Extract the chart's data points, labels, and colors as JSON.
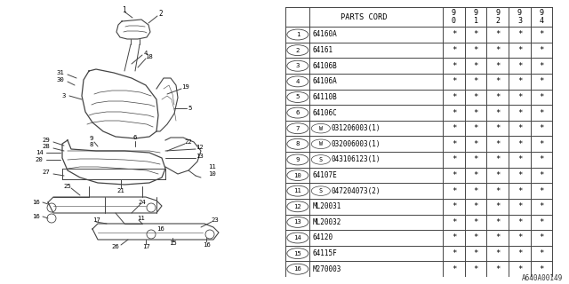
{
  "figure_code": "A640A00149",
  "bg_color": "#ffffff",
  "line_color": "#444444",
  "text_color": "#000000",
  "header": "PARTS CORD",
  "year_cols": [
    [
      "9",
      "0"
    ],
    [
      "9",
      "1"
    ],
    [
      "9",
      "2"
    ],
    [
      "9",
      "3"
    ],
    [
      "9",
      "4"
    ]
  ],
  "rows": [
    {
      "num": "1",
      "code": "64160A",
      "w": false
    },
    {
      "num": "2",
      "code": "64161",
      "w": false
    },
    {
      "num": "3",
      "code": "64106B",
      "w": false
    },
    {
      "num": "4",
      "code": "64106A",
      "w": false
    },
    {
      "num": "5",
      "code": "64110B",
      "w": false
    },
    {
      "num": "6",
      "code": "64106C",
      "w": false
    },
    {
      "num": "7",
      "code": "W031206003(1)",
      "w": true,
      "prefix": "W"
    },
    {
      "num": "8",
      "code": "W032006003(1)",
      "w": true,
      "prefix": "W"
    },
    {
      "num": "9",
      "code": "S043106123(1)",
      "w": true,
      "prefix": "S"
    },
    {
      "num": "10",
      "code": "64107E",
      "w": false
    },
    {
      "num": "11",
      "code": "S047204073(2)",
      "w": true,
      "prefix": "S"
    },
    {
      "num": "12",
      "code": "ML20031",
      "w": false
    },
    {
      "num": "13",
      "code": "ML20032",
      "w": false
    },
    {
      "num": "14",
      "code": "64120",
      "w": false
    },
    {
      "num": "15",
      "code": "64115F",
      "w": false
    },
    {
      "num": "16",
      "code": "M270003",
      "w": false
    }
  ]
}
